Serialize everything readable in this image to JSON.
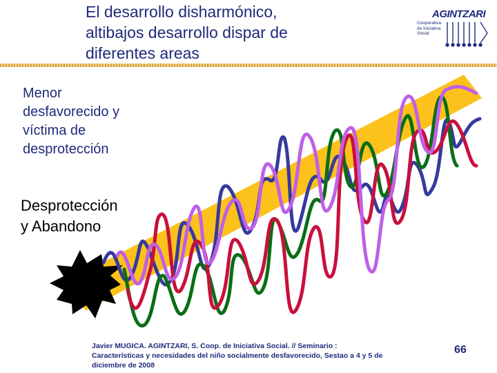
{
  "title": {
    "line1": "El desarrollo disharmónico,",
    "line2": "altibajos desarrollo dispar de",
    "line3": "diferentes areas"
  },
  "logo": {
    "name": "AGINTZARI",
    "sub1": "Cooperativa",
    "sub2": "de Iniciativa",
    "sub3": "Social"
  },
  "label_top": {
    "line1": "Menor",
    "line2": "desfavorecido y",
    "line3": "víctima de",
    "line4": "desprotección"
  },
  "label_bottom": {
    "line1": "Desprotección",
    "line2": "y Abandono"
  },
  "footer": {
    "line1": "Javier MUGICA. AGINTZARI, S. Coop. de Iniciativa Social. // Seminario :",
    "line2": "Características y necesidades del niño socialmente desfavorecido, Sestao a 4 y 5 de",
    "line3": "diciembre de 2008"
  },
  "page_number": "66",
  "colors": {
    "title": "#1e2a7a",
    "band": "#fcc21b",
    "line_navy": "#363a9e",
    "line_green": "#0a6e14",
    "line_red": "#c8103c",
    "line_violet": "#c060e6",
    "rule": "#d9a23c"
  }
}
